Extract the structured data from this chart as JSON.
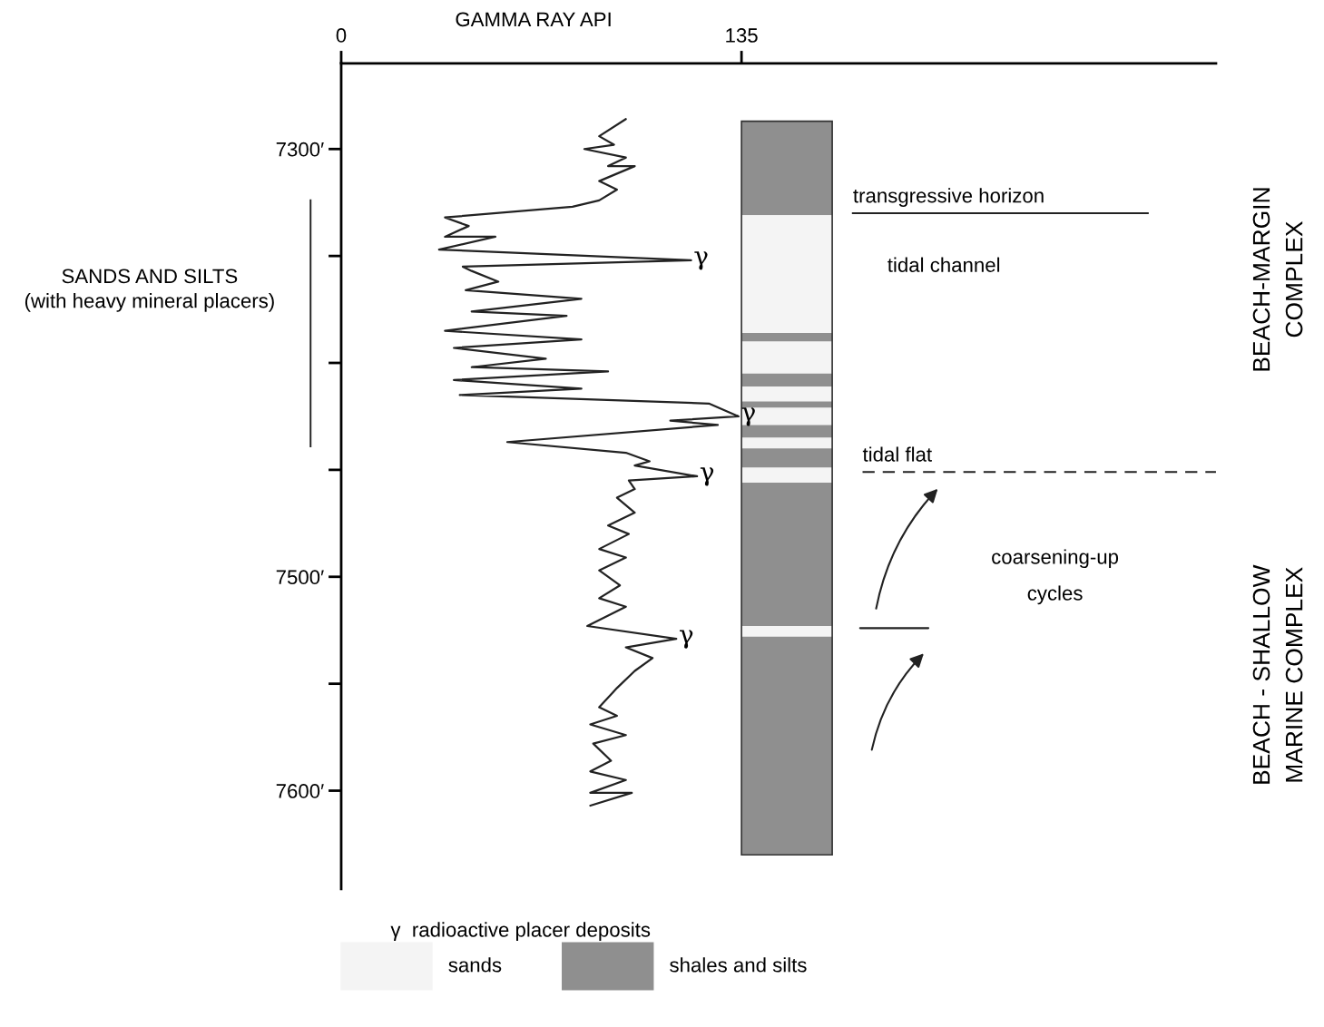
{
  "chart_data": {
    "type": "line",
    "xlabel": "GAMMA RAY API",
    "xlim": [
      0,
      295
    ],
    "xticks": [
      0,
      135
    ],
    "ylim": [
      7646,
      7260
    ],
    "yticks": [
      {
        "value": 7300,
        "label": "7300′"
      },
      {
        "value": 7350,
        "label": null
      },
      {
        "value": 7400,
        "label": null
      },
      {
        "value": 7450,
        "label": null
      },
      {
        "value": 7500,
        "label": "7500′"
      },
      {
        "value": 7550,
        "label": null
      },
      {
        "value": 7600,
        "label": "7600′"
      }
    ],
    "grid": false,
    "legend": "bottom",
    "marker": "none",
    "line_style": "solid",
    "series": [
      {
        "color": "#222222",
        "x": [
          96,
          87,
          92,
          82,
          96,
          90,
          99,
          87,
          93,
          87,
          78,
          35,
          43,
          35,
          52,
          33,
          118,
          41,
          44,
          53,
          42,
          81,
          44,
          76,
          35,
          81,
          38,
          69,
          44,
          90,
          38,
          81,
          40,
          124,
          134,
          111,
          127,
          56,
          96,
          104,
          99,
          120,
          97,
          99,
          93,
          99,
          90,
          97,
          87,
          96,
          87,
          94,
          87,
          96,
          83,
          113,
          96,
          105,
          99,
          93,
          87,
          93,
          84,
          96,
          85,
          91,
          84,
          96,
          84,
          98,
          84
        ],
        "values": [
          7286,
          7294,
          7298,
          7300,
          7304,
          7308,
          7308,
          7315,
          7319,
          7324,
          7327,
          7332,
          7336,
          7341,
          7341,
          7347,
          7352,
          7355,
          7357,
          7362,
          7366,
          7370,
          7376,
          7378,
          7385,
          7389,
          7393,
          7398,
          7402,
          7404,
          7408,
          7412,
          7415,
          7419,
          7425,
          7427,
          7429,
          7437,
          7442,
          7446,
          7448,
          7453,
          7455,
          7459,
          7463,
          7470,
          7476,
          7480,
          7487,
          7491,
          7497,
          7504,
          7510,
          7514,
          7523,
          7529,
          7533,
          7538,
          7544,
          7552,
          7561,
          7565,
          7569,
          7574,
          7578,
          7586,
          7591,
          7595,
          7601,
          7601,
          7607
        ]
      },
      {
        "type": "line",
        "color": "#222222",
        "x": [
          175,
          198
        ],
        "values": [
          7524,
          7524
        ]
      }
    ],
    "bands": [
      {
        "axis": "y",
        "from": 7287,
        "to": 7331,
        "label": "shales and silts",
        "color": "#8f8f8f"
      },
      {
        "axis": "y",
        "from": 7331,
        "to": 7386,
        "label": "sands",
        "color": "#f4f4f4"
      },
      {
        "axis": "y",
        "from": 7386,
        "to": 7390,
        "label": null,
        "color": "#8f8f8f"
      },
      {
        "axis": "y",
        "from": 7390,
        "to": 7405,
        "label": null,
        "color": "#f4f4f4"
      },
      {
        "axis": "y",
        "from": 7405,
        "to": 7411,
        "label": null,
        "color": "#8f8f8f"
      },
      {
        "axis": "y",
        "from": 7411,
        "to": 7418,
        "label": null,
        "color": "#f4f4f4"
      },
      {
        "axis": "y",
        "from": 7418,
        "to": 7421,
        "label": null,
        "color": "#8f8f8f"
      },
      {
        "axis": "y",
        "from": 7421,
        "to": 7429,
        "label": null,
        "color": "#f4f4f4"
      },
      {
        "axis": "y",
        "from": 7429,
        "to": 7435,
        "label": null,
        "color": "#8f8f8f"
      },
      {
        "axis": "y",
        "from": 7435,
        "to": 7440,
        "label": null,
        "color": "#f4f4f4"
      },
      {
        "axis": "y",
        "from": 7440,
        "to": 7449,
        "label": null,
        "color": "#8f8f8f"
      },
      {
        "axis": "y",
        "from": 7449,
        "to": 7456,
        "label": null,
        "color": "#f4f4f4"
      },
      {
        "axis": "y",
        "from": 7456,
        "to": 7523,
        "label": null,
        "color": "#8f8f8f"
      },
      {
        "axis": "y",
        "from": 7523,
        "to": 7528,
        "label": null,
        "color": "#f4f4f4"
      },
      {
        "axis": "y",
        "from": 7528,
        "to": 7630,
        "label": null,
        "color": "#8f8f8f"
      }
    ],
    "ref_lines": [
      {
        "axis": "y",
        "value": 7330,
        "label": "transgressive horizon",
        "line_style": "solid",
        "color": "#222222"
      },
      {
        "axis": "y",
        "value": 7451,
        "label": "tidal flat",
        "line_style": "dashed",
        "color": "#222222"
      }
    ],
    "annotations": [
      "SANDS AND SILTS\n(with heavy mineral placers)",
      {
        "text": "γ",
        "x": 118,
        "y": 7352
      },
      {
        "text": "γ",
        "x": 134,
        "y": 7425
      },
      {
        "text": "γ",
        "x": 120,
        "y": 7453
      },
      {
        "text": "γ",
        "x": 113,
        "y": 7529
      },
      "γ  radioactive placer deposits",
      "tidal channel",
      "coarsening-up\ncycles",
      "BEACH-MARGIN\nCOMPLEX",
      "BEACH - SHALLOW\nMARINE COMPLEX"
    ]
  }
}
